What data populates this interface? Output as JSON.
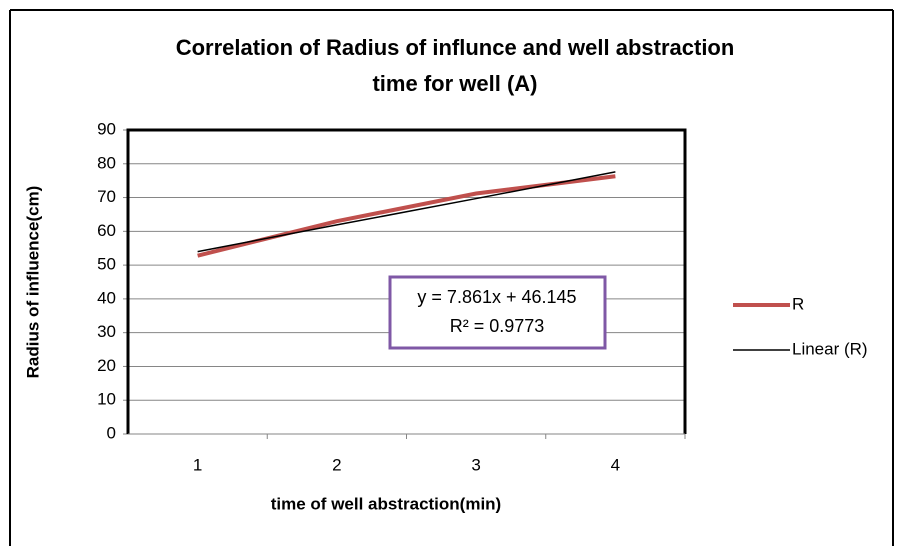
{
  "chart_data": {
    "type": "line",
    "title": [
      "Correlation of Radius of influnce and well  abstraction",
      "time for well (A)"
    ],
    "x_label": "time of well abstraction(min)",
    "y_label": "Radius of influence(cm)",
    "categories": [
      "1",
      "2",
      "3",
      "4"
    ],
    "series": [
      {
        "name": "R",
        "color": "#c0504d",
        "values": [
          52.8,
          63,
          71.2,
          76.3
        ]
      },
      {
        "name": "Linear (R)",
        "color": "#000000",
        "values": [
          54,
          61.9,
          69.7,
          77.6
        ]
      }
    ],
    "annotations": [
      "y = 7.861x + 46.145",
      "R² = 0.9773"
    ],
    "ylim": [
      0,
      90
    ],
    "yticks": [
      0,
      10,
      20,
      30,
      40,
      50,
      60,
      70,
      80,
      90
    ],
    "grid": true,
    "legend": "right"
  }
}
